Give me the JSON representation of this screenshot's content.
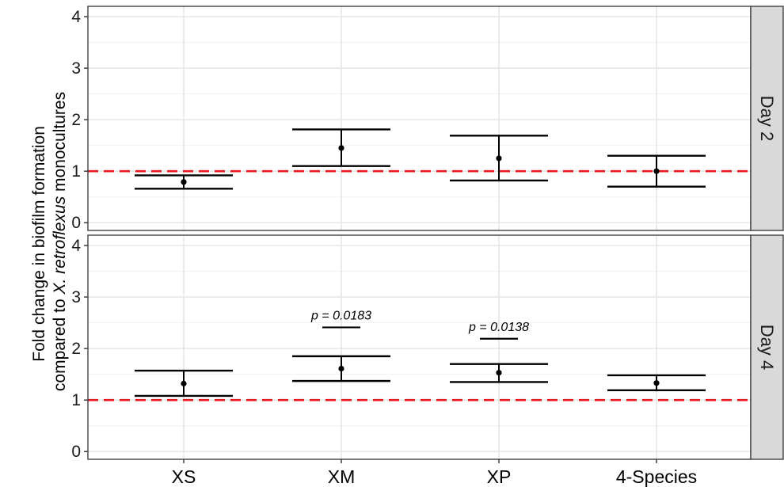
{
  "chart_data": {
    "type": "errorbar",
    "categories": [
      "XS",
      "XM",
      "XP",
      "4-Species"
    ],
    "ylabel": {
      "line1": "Fold change in biofilm formation",
      "line2_prefix": "compared to ",
      "line2_italic": "X. retroflexus",
      "line2_suffix": " monocultures"
    },
    "ylim": [
      -0.15,
      4.2
    ],
    "yticks": [
      0,
      1,
      2,
      3,
      4
    ],
    "grid": true,
    "reference_line": {
      "y": 1,
      "color": "#e41a1c",
      "style": "dashed"
    },
    "facets": [
      {
        "strip_label": "Day 2",
        "points": [
          {
            "category": "XS",
            "y": 0.79,
            "lower": 0.66,
            "upper": 0.92
          },
          {
            "category": "XM",
            "y": 1.45,
            "lower": 1.1,
            "upper": 1.81
          },
          {
            "category": "XP",
            "y": 1.25,
            "lower": 0.82,
            "upper": 1.69
          },
          {
            "category": "4-Species",
            "y": 1.0,
            "lower": 0.7,
            "upper": 1.3
          }
        ],
        "annotations": []
      },
      {
        "strip_label": "Day 4",
        "points": [
          {
            "category": "XS",
            "y": 1.32,
            "lower": 1.08,
            "upper": 1.57
          },
          {
            "category": "XM",
            "y": 1.61,
            "lower": 1.37,
            "upper": 1.85
          },
          {
            "category": "XP",
            "y": 1.53,
            "lower": 1.35,
            "upper": 1.7
          },
          {
            "category": "4-Species",
            "y": 1.33,
            "lower": 1.19,
            "upper": 1.48
          }
        ],
        "annotations": [
          {
            "category": "XM",
            "text": "p = 0.0183",
            "y": 2.41
          },
          {
            "category": "XP",
            "text": "p = 0.0138",
            "y": 2.19
          }
        ]
      }
    ]
  }
}
